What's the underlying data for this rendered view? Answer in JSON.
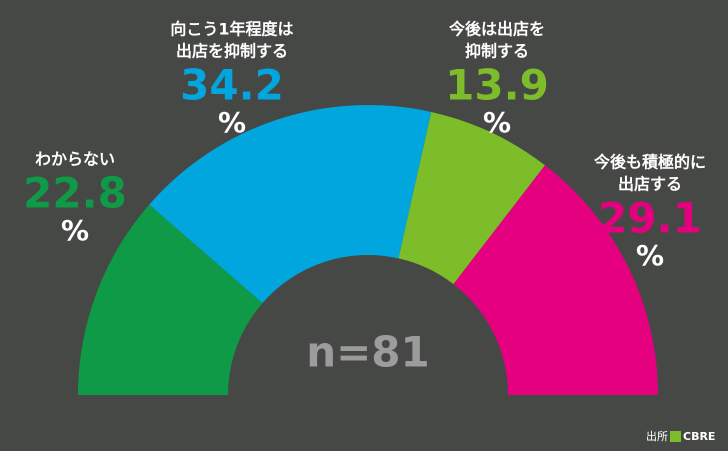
{
  "chart_data": {
    "type": "semi-donut",
    "categories": [
      [
        "わからない"
      ],
      [
        "向こう1年程度は",
        "出店を抑制する"
      ],
      [
        "今後は出店を",
        "抑制する"
      ],
      [
        "今後も積極的に",
        "出店する"
      ]
    ],
    "values": [
      22.8,
      34.2,
      13.9,
      29.1
    ],
    "unit": "%",
    "colors": [
      "#0f9a48",
      "#00a6dd",
      "#7dbd2a",
      "#e4007f"
    ],
    "center_label": "n=81",
    "source": {
      "label": "出所",
      "name": "CBRE"
    }
  }
}
